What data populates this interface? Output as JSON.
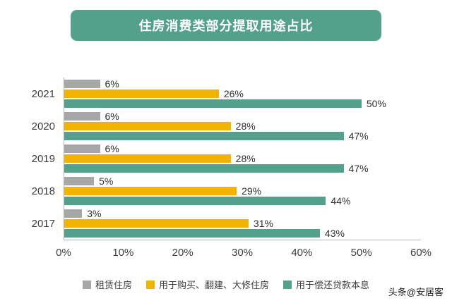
{
  "title": "住房消费类部分提取用途占比",
  "watermark": "头条@安居客",
  "colors": {
    "title_bg": "#53a08b",
    "axis_line": "#b5b5b5",
    "text": "#3d3d3d"
  },
  "chart_data": {
    "type": "bar",
    "orientation": "horizontal",
    "title": "住房消费类部分提取用途占比",
    "categories": [
      "2021",
      "2020",
      "2019",
      "2018",
      "2017"
    ],
    "series": [
      {
        "key": "rent",
        "name": "租赁住房",
        "color": "#a7a7a7",
        "values": [
          6,
          6,
          6,
          5,
          3
        ]
      },
      {
        "key": "renovation",
        "name": "用于购买、翻建、大修住房",
        "color": "#f0b400",
        "values": [
          26,
          28,
          28,
          29,
          31
        ]
      },
      {
        "key": "loan",
        "name": "用于偿还贷款本息",
        "color": "#53a08c",
        "values": [
          50,
          47,
          47,
          44,
          43
        ]
      }
    ],
    "value_suffix": "%",
    "x_ticks": [
      "0%",
      "10%",
      "20%",
      "30%",
      "40%",
      "50%",
      "60%"
    ],
    "xlim": [
      0,
      60
    ],
    "grid": false,
    "legend_position": "bottom"
  }
}
